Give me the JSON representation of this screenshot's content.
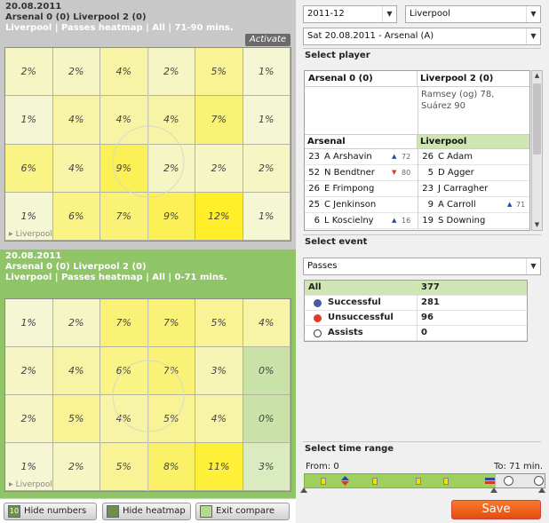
{
  "top": {
    "date": "20.08.2011",
    "score": "Arsenal 0 (0) Liverpool 2 (0)",
    "subtitle": "Liverpool | Passes heatmap | All | 71-90 mins.",
    "activate_label": "Activate",
    "team_tag": "Liverpool",
    "cells": [
      [
        "2%",
        "2%",
        "4%",
        "2%",
        "5%",
        "1%"
      ],
      [
        "1%",
        "4%",
        "4%",
        "4%",
        "7%",
        "1%"
      ],
      [
        "6%",
        "4%",
        "9%",
        "2%",
        "2%",
        "2%"
      ],
      [
        "1%",
        "6%",
        "7%",
        "9%",
        "12%",
        "1%"
      ]
    ]
  },
  "bottom": {
    "date": "20.08.2011",
    "score": "Arsenal 0 (0) Liverpool 2 (0)",
    "subtitle": "Liverpool | Passes heatmap | All | 0-71 mins.",
    "team_tag": "Liverpool",
    "cells": [
      [
        "1%",
        "2%",
        "7%",
        "7%",
        "5%",
        "4%"
      ],
      [
        "2%",
        "4%",
        "6%",
        "7%",
        "3%",
        "0%"
      ],
      [
        "2%",
        "5%",
        "4%",
        "5%",
        "4%",
        "0%"
      ],
      [
        "1%",
        "2%",
        "5%",
        "8%",
        "11%",
        "3%"
      ]
    ]
  },
  "toolbar": {
    "hide_numbers": "Hide numbers",
    "hide_numbers_badge": "10",
    "hide_heatmap": "Hide heatmap",
    "exit_compare": "Exit compare"
  },
  "filters": {
    "season": "2011-12",
    "team": "Liverpool",
    "match": "Sat 20.08.2011 - Arsenal (A)"
  },
  "select_player_label": "Select player",
  "lineup": {
    "home_header": "Arsenal 0 (0)",
    "away_header": "Liverpool 2 (0)",
    "away_scorers": "Ramsey (og) 78, Suárez 90",
    "home_team": "Arsenal",
    "away_team": "Liverpool",
    "players": [
      {
        "hnum": "23",
        "hname": "A Arshavin",
        "hsub": "72",
        "hdir": "up",
        "anum": "26",
        "aname": "C Adam",
        "asub": "",
        "adir": ""
      },
      {
        "hnum": "52",
        "hname": "N Bendtner",
        "hsub": "80",
        "hdir": "down",
        "anum": "5",
        "aname": "D Agger",
        "asub": "",
        "adir": ""
      },
      {
        "hnum": "26",
        "hname": "E Frimpong",
        "hsub": "",
        "hdir": "",
        "anum": "23",
        "aname": "J Carragher",
        "asub": "",
        "adir": ""
      },
      {
        "hnum": "25",
        "hname": "C Jenkinson",
        "hsub": "",
        "hdir": "",
        "anum": "9",
        "aname": "A Carroll",
        "asub": "71",
        "adir": "up"
      },
      {
        "hnum": "6",
        "hname": "L Koscielny",
        "hsub": "16",
        "hdir": "up",
        "anum": "19",
        "aname": "S Downing",
        "asub": "",
        "adir": ""
      }
    ]
  },
  "select_event_label": "Select event",
  "event_select": "Passes",
  "events": {
    "all_label": "All",
    "all_value": "377",
    "rows": [
      {
        "label": "Successful",
        "value": "281",
        "color": "#4a5aa8"
      },
      {
        "label": "Unsuccessful",
        "value": "96",
        "color": "#e23b2a"
      },
      {
        "label": "Assists",
        "value": "0",
        "color": "#ffffff"
      }
    ]
  },
  "select_time_label": "Select time range",
  "time": {
    "from_label": "From: 0",
    "to_label": "To: 71 min."
  },
  "save_label": "Save",
  "colors": {
    "accent_save": "#ee6020",
    "compare_panel": "#8fc467",
    "heat_high": "#fff03a",
    "heat_low": "#f4f7e4"
  }
}
